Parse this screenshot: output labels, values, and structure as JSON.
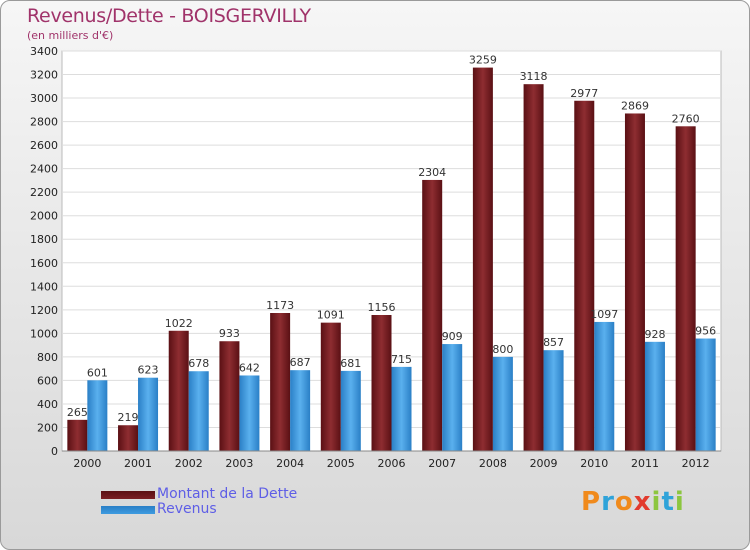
{
  "chart_data": {
    "type": "bar",
    "title": "Revenus/Dette - BOISGERVILLY",
    "subtitle": "(en milliers d'€)",
    "categories": [
      "2000",
      "2001",
      "2002",
      "2003",
      "2004",
      "2005",
      "2006",
      "2007",
      "2008",
      "2009",
      "2010",
      "2011",
      "2012"
    ],
    "series": [
      {
        "name": "Montant de la Dette",
        "color": "#7a1f24",
        "values": [
          265,
          219,
          1022,
          933,
          1173,
          1091,
          1156,
          2304,
          3259,
          3118,
          2977,
          2869,
          2760
        ]
      },
      {
        "name": "Revenus",
        "color": "#3e9be0",
        "values": [
          601,
          623,
          678,
          642,
          687,
          681,
          715,
          909,
          800,
          857,
          1097,
          928,
          956
        ]
      }
    ],
    "ylim": [
      0,
      3400
    ],
    "yticks": [
      0,
      200,
      400,
      600,
      800,
      1000,
      1200,
      1400,
      1600,
      1800,
      2000,
      2200,
      2400,
      2600,
      2800,
      3000,
      3200,
      3400
    ],
    "grid": true,
    "legend_position": "bottom-left"
  },
  "logo": {
    "letters": [
      "P",
      "r",
      "o",
      "x",
      "i",
      "t",
      "i"
    ],
    "colors": [
      "#f08a1c",
      "#2fa3d9",
      "#f08a1c",
      "#e23b2e",
      "#8cc63f",
      "#2fa3d9",
      "#8cc63f"
    ]
  }
}
